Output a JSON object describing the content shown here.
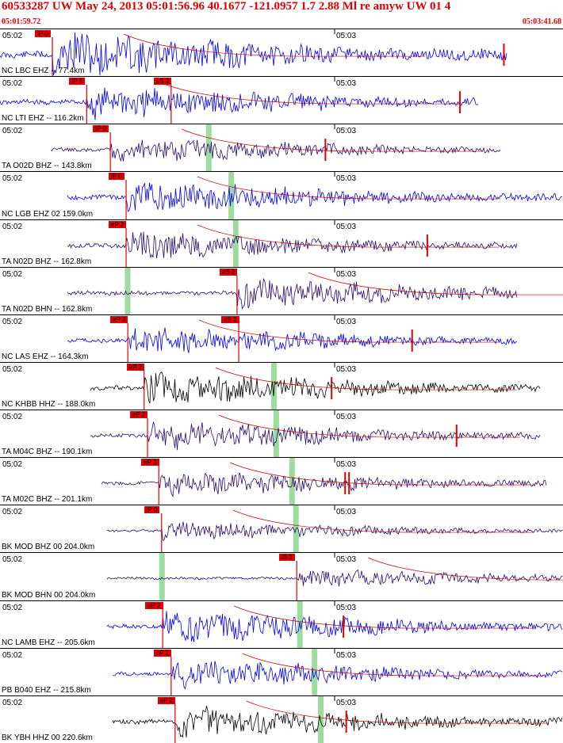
{
  "header": {
    "title": "60533287 UW May 24, 2013 05:01:56.96   40.1677 -121.0957  1.7 2.88 Ml re amyw UW 01   4",
    "time_start": "05:01:59.72",
    "time_end": "05:03:41.68"
  },
  "colors": {
    "pick": "#e00000",
    "blue_trace": "#0000ee",
    "purple_trace": "#2a0a6e",
    "black_trace": "#000000",
    "green_band": "#9edb9e",
    "red_line": "#cc0000"
  },
  "minute_labels": {
    "left": "05:02",
    "right": "05:03"
  },
  "traces": [
    {
      "label": "NC LBC EHZ -- 77.4km",
      "color": "#0000ee",
      "picks": [
        {
          "text": "iP 0",
          "frac": 0.093
        }
      ],
      "red_ticks": [
        0.895
      ],
      "green": [],
      "amp": 26,
      "start": 0.0,
      "end": 0.9
    },
    {
      "label": "NC LTI EHZ -- 116.2km",
      "color": "#0000ee",
      "picks": [
        {
          "text": "iP 1",
          "frac": 0.154
        },
        {
          "text": "eS 2",
          "frac": 0.304
        }
      ],
      "red_ticks": [
        0.817
      ],
      "green": [],
      "amp": 20,
      "start": 0.0,
      "end": 0.85
    },
    {
      "label": "TA O02D BHZ -- 143.8km",
      "color": "#2a0a6e",
      "picks": [
        {
          "text": "iP 0",
          "frac": 0.196
        }
      ],
      "red_ticks": [
        0.578
      ],
      "green": [
        0.37
      ],
      "amp": 14,
      "start": 0.09,
      "end": 0.89
    },
    {
      "label": "NC LGB EHZ 02 159.0km",
      "color": "#0000ee",
      "picks": [
        {
          "text": "iP 0",
          "frac": 0.224
        }
      ],
      "red_ticks": [],
      "green": [
        0.41
      ],
      "amp": 18,
      "start": 0.12,
      "end": 1.0
    },
    {
      "label": "TA N02D BHZ -- 162.8km",
      "color": "#2a0a6e",
      "picks": [
        {
          "text": "eP 2",
          "frac": 0.224
        }
      ],
      "red_ticks": [
        0.759
      ],
      "green": [
        0.418
      ],
      "amp": 16,
      "start": 0.12,
      "end": 0.92
    },
    {
      "label": "TA N02D BHN -- 162.8km",
      "color": "#2a0a6e",
      "picks": [
        {
          "text": "eS 2",
          "frac": 0.421
        }
      ],
      "red_ticks": [],
      "green": [
        0.226
      ],
      "amp": 16,
      "start": 0.12,
      "end": 0.92
    },
    {
      "label": "NC LAS EHZ -- 164.3km",
      "color": "#0000ee",
      "picks": [
        {
          "text": "eP 2",
          "frac": 0.227
        },
        {
          "text": "eS 2",
          "frac": 0.424
        }
      ],
      "red_ticks": [
        0.732
      ],
      "green": [],
      "amp": 16,
      "start": 0.12,
      "end": 0.92
    },
    {
      "label": "NC KHBB HHZ -- 188.0km",
      "color": "#000000",
      "picks": [
        {
          "text": "eP 2",
          "frac": 0.256
        }
      ],
      "red_ticks": [
        0.589
      ],
      "green": [
        0.486
      ],
      "amp": 18,
      "start": 0.16,
      "end": 0.96
    },
    {
      "label": "TA M04C BHZ -- 190.1km",
      "color": "#2a0a6e",
      "picks": [
        {
          "text": "eP 2",
          "frac": 0.262
        }
      ],
      "red_ticks": [
        0.811
      ],
      "green": [
        0.49
      ],
      "amp": 16,
      "start": 0.16,
      "end": 0.96
    },
    {
      "label": "TA M02C BHZ -- 201.1km",
      "color": "#2a0a6e",
      "picks": [
        {
          "text": "eP 2",
          "frac": 0.282
        }
      ],
      "red_ticks": [
        0.613,
        0.62
      ],
      "green": [
        0.518
      ],
      "amp": 14,
      "start": 0.18,
      "end": 0.97
    },
    {
      "label": "BK MOD BHZ 00 204.0km",
      "color": "#2a0a6e",
      "picks": [
        {
          "text": "iP 0",
          "frac": 0.287
        }
      ],
      "red_ticks": [],
      "green": [
        0.525
      ],
      "amp": 10,
      "start": 0.19,
      "end": 1.0
    },
    {
      "label": "BK MOD BHN 00 204.0km",
      "color": "#2a0a6e",
      "picks": [
        {
          "text": "iS 1",
          "frac": 0.527
        }
      ],
      "red_ticks": [],
      "green": [
        0.287
      ],
      "amp": 10,
      "start": 0.19,
      "end": 1.0
    },
    {
      "label": "NC LAMB EHZ -- 205.6km",
      "color": "#0000ee",
      "picks": [
        {
          "text": "eP 2",
          "frac": 0.289
        }
      ],
      "red_ticks": [
        0.61
      ],
      "green": [
        0.532
      ],
      "amp": 18,
      "start": 0.19,
      "end": 1.0
    },
    {
      "label": "PB B040 EHZ -- 215.8km",
      "color": "#0000ee",
      "picks": [
        {
          "text": "eP 2",
          "frac": 0.304
        }
      ],
      "red_ticks": [],
      "green": [
        0.558
      ],
      "amp": 16,
      "start": 0.2,
      "end": 1.0
    },
    {
      "label": "BK YBH HHZ 00 220.6km",
      "color": "#000000",
      "picks": [
        {
          "text": "eP 2",
          "frac": 0.311
        }
      ],
      "red_ticks": [
        0.615
      ],
      "green": [
        0.569
      ],
      "amp": 18,
      "start": 0.2,
      "end": 1.0
    }
  ]
}
